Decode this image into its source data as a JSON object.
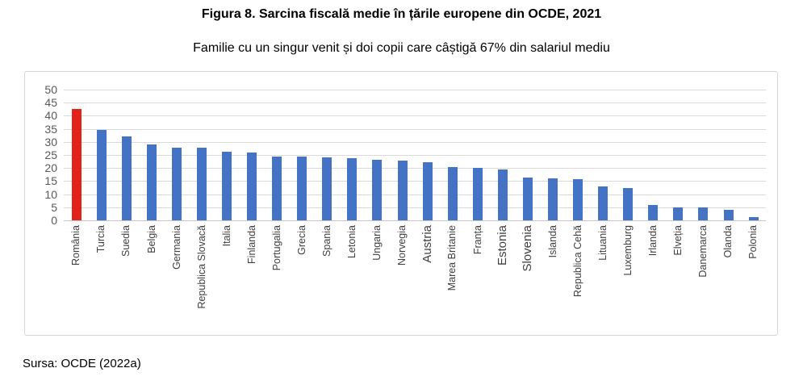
{
  "header": {
    "title": "Figura 8. Sarcina fiscală medie în țările europene din OCDE, 2021",
    "subtitle": "Familie cu un singur venit și doi copii care câștigă 67% din salariul mediu"
  },
  "footer": {
    "source": "Sursa: OCDE (2022a)"
  },
  "chart_data": {
    "type": "bar",
    "title": "Figura 8. Sarcina fiscală medie în țările europene din OCDE, 2021",
    "subtitle": "Familie cu un singur venit și doi copii care câștigă 67% din salariul mediu",
    "categories": [
      "România",
      "Turcia",
      "Suedia",
      "Belgia",
      "Germania",
      "Republica Slovacă",
      "Italia",
      "Finlanda",
      "Portugalia",
      "Grecia",
      "Spania",
      "Letonia",
      "Ungaria",
      "Norvegia",
      "Austria",
      "Marea Britanie",
      "Franța",
      "Estonia",
      "Slovenia",
      "Islanda",
      "Republica Cehă",
      "Lituania",
      "Luxemburg",
      "Irlanda",
      "Elveția",
      "Danemarca",
      "Olanda",
      "Polonia"
    ],
    "values": [
      42.5,
      34.7,
      32.2,
      29.0,
      27.7,
      27.7,
      26.1,
      25.8,
      24.3,
      24.3,
      24.1,
      23.8,
      23.1,
      22.7,
      22.3,
      20.5,
      20.1,
      19.4,
      16.3,
      16.0,
      15.8,
      13.0,
      12.5,
      5.9,
      5.0,
      4.8,
      4.0,
      1.1
    ],
    "highlight": {
      "category": "România",
      "color": "#e2231a"
    },
    "bar_color": "#4472c4",
    "large_labels": [
      "Austria",
      "Estonia",
      "Slovenia"
    ],
    "xlabel": "",
    "ylabel": "",
    "ylim": [
      0,
      50
    ],
    "yticks": [
      0,
      5,
      10,
      15,
      20,
      25,
      30,
      35,
      40,
      45,
      50
    ],
    "grid": true,
    "legend": "none",
    "gridline_color": "#d9d9d9",
    "axis_label_color": "#595959"
  }
}
